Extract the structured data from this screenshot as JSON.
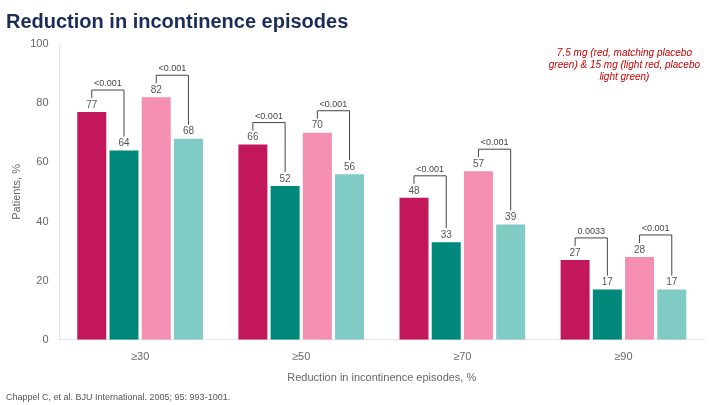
{
  "chart_data": {
    "type": "bar",
    "title": "Reduction in incontinence episodes",
    "xlabel": "Reduction in incontinence episodes, %",
    "ylabel": "Patients, %",
    "footnote": "Chappel C, et al. BJU International. 2005; 95: 993-1001.",
    "annotations": [
      "7.5 mg (red, matching placebo\ngreen) & 15 mg (light red, placebo\nlight green)"
    ],
    "categories": [
      "≥30",
      "≥50",
      "≥70",
      "≥90"
    ],
    "series": [
      {
        "color": "#C2185B",
        "values": [
          77,
          66,
          48,
          27
        ],
        "pvalues": [
          "<0.001",
          "<0.001",
          "<0.001",
          "0.0033"
        ]
      },
      {
        "color": "#00897B",
        "values": [
          64,
          52,
          33,
          17
        ]
      },
      {
        "color": "#F48FB1",
        "values": [
          82,
          70,
          57,
          28
        ],
        "pvalues": [
          "<0.001",
          "<0.001",
          "<0.001",
          "<0.001"
        ]
      },
      {
        "color": "#80CBC4",
        "values": [
          68,
          56,
          39,
          17
        ]
      }
    ],
    "ylim": [
      0,
      100
    ],
    "yticks": [
      0,
      20,
      40,
      60,
      80,
      100
    ],
    "grid": false,
    "data_labels": true
  }
}
